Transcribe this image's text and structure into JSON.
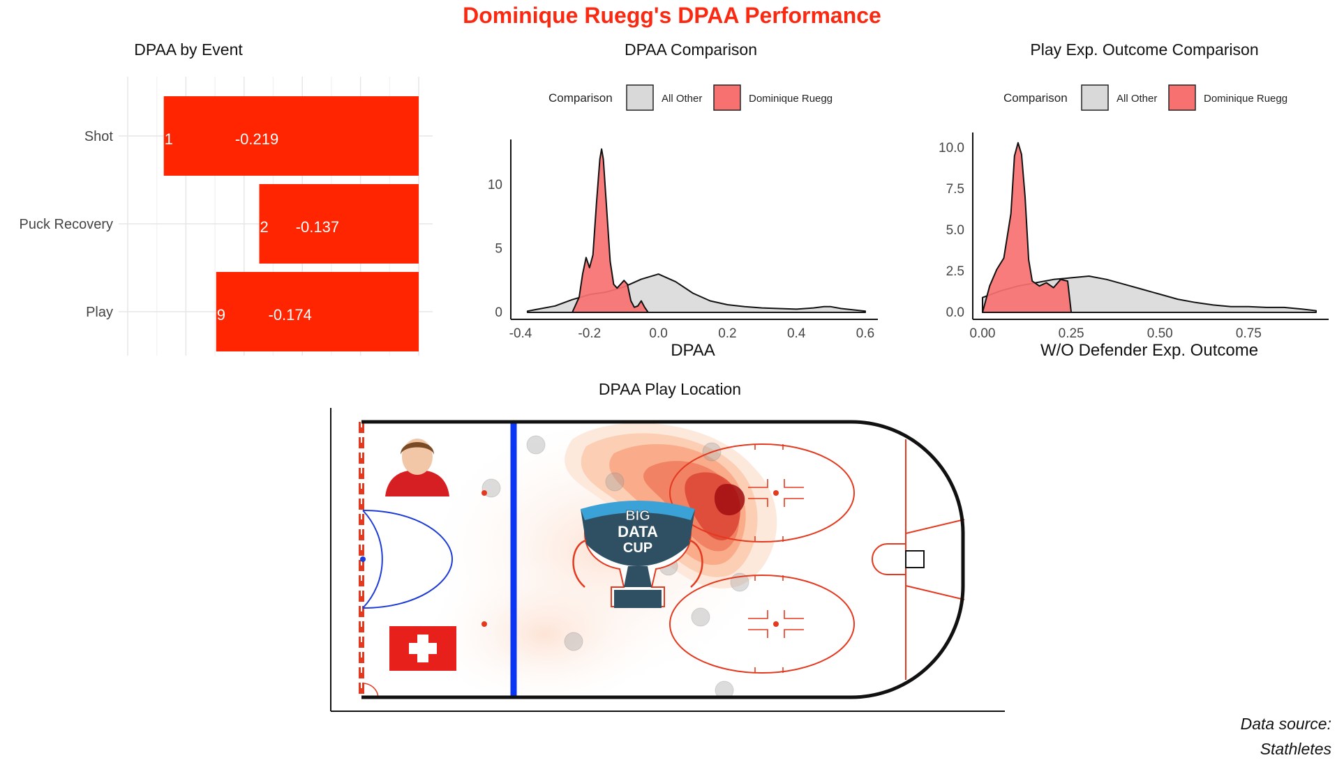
{
  "title": "Dominique Ruegg's DPAA Performance",
  "source_line1": "Data source:",
  "source_line2": "Stathletes",
  "colors": {
    "accent": "#fa2a12",
    "bar": "#ff2500",
    "player_fill": "#f87171",
    "other_fill": "#d9d9d9",
    "blue_line": "#0a35f2",
    "rink_red": "#e5391f"
  },
  "chart_data": [
    {
      "type": "bar",
      "title": "DPAA by Event",
      "categories": [
        "Shot",
        "Puck Recovery",
        "Play"
      ],
      "values": [
        -0.219,
        -0.137,
        -0.174
      ],
      "value_labels": [
        "-0.219",
        "-0.137",
        "-0.174"
      ],
      "counts": [
        "1",
        "2",
        "9"
      ],
      "xlim": [
        -0.25,
        0
      ],
      "grid": true
    },
    {
      "type": "area",
      "title": "DPAA Comparison",
      "xlabel": "DPAA",
      "ylabel": "",
      "xlim": [
        -0.4,
        0.6
      ],
      "ylim": [
        0,
        13
      ],
      "xticks": [
        "-0.4",
        "-0.2",
        "0.0",
        "0.2",
        "0.4",
        "0.6"
      ],
      "yticks": [
        "0",
        "5",
        "10"
      ],
      "legend_title": "Comparison",
      "legend_position": "top",
      "series": [
        {
          "name": "All Other",
          "x": [
            -0.38,
            -0.3,
            -0.25,
            -0.2,
            -0.15,
            -0.1,
            -0.05,
            0.0,
            0.05,
            0.1,
            0.15,
            0.2,
            0.25,
            0.3,
            0.35,
            0.4,
            0.45,
            0.48,
            0.5,
            0.53,
            0.6
          ],
          "y": [
            0.1,
            0.5,
            1.0,
            1.4,
            1.6,
            2.0,
            2.6,
            3.0,
            2.4,
            1.5,
            0.9,
            0.6,
            0.45,
            0.35,
            0.3,
            0.25,
            0.35,
            0.45,
            0.45,
            0.3,
            0.1
          ]
        },
        {
          "name": "Dominique Ruegg",
          "x": [
            -0.25,
            -0.23,
            -0.22,
            -0.21,
            -0.2,
            -0.19,
            -0.18,
            -0.17,
            -0.165,
            -0.16,
            -0.15,
            -0.14,
            -0.13,
            -0.12,
            -0.11,
            -0.1,
            -0.09,
            -0.08,
            -0.07,
            -0.06,
            -0.05,
            -0.04,
            -0.03
          ],
          "y": [
            0.0,
            1.2,
            3.0,
            4.3,
            3.5,
            4.5,
            8.5,
            12.0,
            12.8,
            12.0,
            8.0,
            4.0,
            2.2,
            1.9,
            2.2,
            2.5,
            2.2,
            0.9,
            0.4,
            0.5,
            0.9,
            0.4,
            0.0
          ]
        }
      ]
    },
    {
      "type": "area",
      "title": "Play Exp. Outcome Comparison",
      "xlabel": "W/O Defender Exp. Outcome",
      "ylabel": "",
      "xlim": [
        0,
        0.94
      ],
      "ylim": [
        0,
        10.5
      ],
      "xticks": [
        "0.00",
        "0.25",
        "0.50",
        "0.75"
      ],
      "yticks": [
        "0.0",
        "2.5",
        "5.0",
        "7.5",
        "10.0"
      ],
      "legend_title": "Comparison",
      "legend_position": "top",
      "series": [
        {
          "name": "All Other",
          "x": [
            0.0,
            0.05,
            0.1,
            0.15,
            0.2,
            0.25,
            0.3,
            0.35,
            0.4,
            0.45,
            0.5,
            0.55,
            0.6,
            0.65,
            0.7,
            0.75,
            0.8,
            0.85,
            0.9,
            0.94
          ],
          "y": [
            0.9,
            1.3,
            1.6,
            1.8,
            2.0,
            2.1,
            2.2,
            2.0,
            1.7,
            1.4,
            1.1,
            0.8,
            0.6,
            0.45,
            0.35,
            0.35,
            0.3,
            0.3,
            0.2,
            0.1
          ]
        },
        {
          "name": "Dominique Ruegg",
          "x": [
            0.0,
            0.02,
            0.04,
            0.06,
            0.08,
            0.09,
            0.1,
            0.11,
            0.12,
            0.13,
            0.14,
            0.16,
            0.18,
            0.2,
            0.22,
            0.24,
            0.25
          ],
          "y": [
            0.0,
            1.6,
            2.6,
            3.3,
            6.0,
            9.5,
            10.3,
            9.6,
            7.0,
            3.2,
            1.9,
            1.6,
            1.8,
            1.5,
            2.0,
            1.9,
            0.0
          ]
        }
      ]
    }
  ],
  "rink": {
    "title": "DPAA Play Location",
    "logo_line1": "BIG",
    "logo_line2": "DATA",
    "logo_line3": "CUP"
  }
}
